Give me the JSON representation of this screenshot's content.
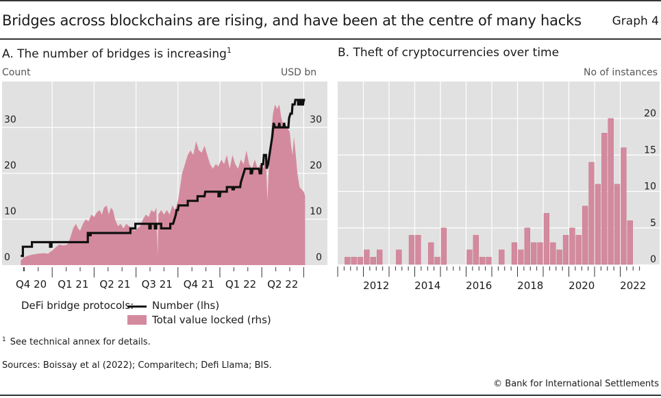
{
  "header": {
    "title": "Bridges across blockchains are rising, and have been at the centre of many hacks",
    "graph_label": "Graph 4"
  },
  "panels": {
    "a": {
      "title": "A. The number of bridges is increasing",
      "title_sup": "1",
      "left_unit": "Count",
      "right_unit": "USD bn"
    },
    "b": {
      "title": "B. Theft of cryptocurrencies over time",
      "right_unit": "No of instances"
    }
  },
  "legend": {
    "lead": "DeFi bridge protocols:",
    "number_label": "Number (lhs)",
    "tvl_label": "Total value locked (rhs)"
  },
  "footer": {
    "footnote_mark": "1",
    "footnote": "See technical annex for details.",
    "sources": "Sources: Boissay et al (2022); Comparitech; Defi Llama; BIS.",
    "copyright": "© Bank for International Settlements"
  },
  "colors": {
    "plot_bg": "#e1e1e1",
    "grid": "#ffffff",
    "tvl_fill": "#d48a9e",
    "number_line": "#111111",
    "bar_fill": "#d48a9e",
    "bar_stroke": "#c47489"
  },
  "chart_data": [
    {
      "type": "line+area",
      "title": "A. The number of bridges is increasing",
      "x_unit": "months since 1 Oct 2020",
      "xlim": [
        -0.6,
        22.6
      ],
      "x_ticks": [
        {
          "label": "Q4 20",
          "start": 0
        },
        {
          "label": "Q1 21",
          "start": 3
        },
        {
          "label": "Q2 21",
          "start": 6
        },
        {
          "label": "Q3 21",
          "start": 9
        },
        {
          "label": "Q4 21",
          "start": 12
        },
        {
          "label": "Q1 22",
          "start": 15
        },
        {
          "label": "Q2 22",
          "start": 18
        }
      ],
      "x_end": 21,
      "ylabel_left": "Count",
      "ylabel_right": "USD bn",
      "ylim_left": [
        0,
        40
      ],
      "ylim_right": [
        0,
        40
      ],
      "y_ticks_left": [
        0,
        10,
        20,
        30
      ],
      "y_ticks_right": [
        0,
        10,
        20,
        30
      ],
      "grid": true,
      "series": [
        {
          "name": "Number (lhs)",
          "kind": "step-line",
          "axis": "left",
          "points": [
            [
              0.75,
              2
            ],
            [
              0.9,
              2
            ],
            [
              0.9,
              4
            ],
            [
              1.55,
              4
            ],
            [
              1.55,
              5
            ],
            [
              2.85,
              5
            ],
            [
              2.85,
              4
            ],
            [
              2.95,
              4
            ],
            [
              2.95,
              5
            ],
            [
              5.55,
              5
            ],
            [
              5.55,
              7
            ],
            [
              5.65,
              7
            ],
            [
              5.65,
              6.5
            ],
            [
              5.75,
              6.5
            ],
            [
              5.75,
              7
            ],
            [
              8.6,
              7
            ],
            [
              8.6,
              8
            ],
            [
              8.95,
              8
            ],
            [
              8.95,
              9
            ],
            [
              9.95,
              9
            ],
            [
              9.95,
              8
            ],
            [
              10.05,
              8
            ],
            [
              10.05,
              9
            ],
            [
              10.35,
              9
            ],
            [
              10.35,
              8
            ],
            [
              10.45,
              8
            ],
            [
              10.45,
              9
            ],
            [
              10.8,
              9
            ],
            [
              10.8,
              8
            ],
            [
              11.45,
              8
            ],
            [
              11.45,
              9
            ],
            [
              11.65,
              9
            ],
            [
              11.75,
              10
            ],
            [
              11.85,
              11
            ],
            [
              11.9,
              12
            ],
            [
              12.0,
              12
            ],
            [
              12.05,
              13
            ],
            [
              12.7,
              13
            ],
            [
              12.7,
              14
            ],
            [
              13.4,
              14
            ],
            [
              13.4,
              15
            ],
            [
              13.9,
              15
            ],
            [
              13.95,
              16
            ],
            [
              14.9,
              16
            ],
            [
              14.9,
              15
            ],
            [
              15.0,
              15
            ],
            [
              15.05,
              16
            ],
            [
              15.5,
              16
            ],
            [
              15.5,
              17
            ],
            [
              15.9,
              17
            ],
            [
              15.9,
              16.5
            ],
            [
              16.0,
              16.5
            ],
            [
              16.05,
              17
            ],
            [
              16.45,
              17
            ],
            [
              16.5,
              18
            ],
            [
              16.6,
              19
            ],
            [
              16.7,
              20
            ],
            [
              16.8,
              21
            ],
            [
              17.2,
              21
            ],
            [
              17.2,
              20
            ],
            [
              17.3,
              20
            ],
            [
              17.35,
              21
            ],
            [
              17.8,
              21
            ],
            [
              17.85,
              20
            ],
            [
              17.95,
              20
            ],
            [
              18.0,
              22
            ],
            [
              18.1,
              22
            ],
            [
              18.15,
              24
            ],
            [
              18.3,
              24
            ],
            [
              18.35,
              21
            ],
            [
              18.45,
              22
            ],
            [
              18.5,
              23
            ],
            [
              18.6,
              25
            ],
            [
              18.75,
              28
            ],
            [
              18.85,
              31
            ],
            [
              18.95,
              30
            ],
            [
              19.2,
              30
            ],
            [
              19.25,
              31
            ],
            [
              19.3,
              30
            ],
            [
              19.55,
              30
            ],
            [
              19.6,
              31
            ],
            [
              19.65,
              30
            ],
            [
              19.9,
              30
            ],
            [
              19.95,
              32
            ],
            [
              20.05,
              33
            ],
            [
              20.15,
              33
            ],
            [
              20.2,
              35
            ],
            [
              20.35,
              35
            ],
            [
              20.4,
              36
            ],
            [
              20.6,
              36
            ],
            [
              20.6,
              35
            ],
            [
              20.7,
              35
            ],
            [
              20.75,
              36
            ],
            [
              20.85,
              36
            ],
            [
              20.85,
              35
            ],
            [
              20.95,
              35
            ],
            [
              21.0,
              36
            ],
            [
              21.1,
              36
            ]
          ]
        },
        {
          "name": "Total value locked (rhs)",
          "kind": "area",
          "axis": "right",
          "points": [
            [
              0.75,
              1
            ],
            [
              0.9,
              1.5
            ],
            [
              1.2,
              2
            ],
            [
              1.6,
              2.3
            ],
            [
              2.0,
              2.5
            ],
            [
              2.4,
              2.6
            ],
            [
              2.7,
              2.5
            ],
            [
              3.0,
              3.2
            ],
            [
              3.3,
              4
            ],
            [
              3.5,
              4.5
            ],
            [
              3.8,
              4.3
            ],
            [
              4.1,
              4.5
            ],
            [
              4.3,
              6
            ],
            [
              4.5,
              8
            ],
            [
              4.7,
              9
            ],
            [
              4.85,
              8
            ],
            [
              5.0,
              7.5
            ],
            [
              5.2,
              9
            ],
            [
              5.4,
              10
            ],
            [
              5.6,
              9.5
            ],
            [
              5.8,
              11
            ],
            [
              6.0,
              10.5
            ],
            [
              6.2,
              11.5
            ],
            [
              6.4,
              12
            ],
            [
              6.55,
              11
            ],
            [
              6.7,
              12.5
            ],
            [
              6.9,
              13
            ],
            [
              7.05,
              11
            ],
            [
              7.2,
              12.5
            ],
            [
              7.35,
              12
            ],
            [
              7.5,
              10
            ],
            [
              7.7,
              8.5
            ],
            [
              7.9,
              9
            ],
            [
              8.1,
              8
            ],
            [
              8.3,
              9
            ],
            [
              8.5,
              8.5
            ],
            [
              8.7,
              8
            ],
            [
              8.9,
              7.5
            ],
            [
              9.1,
              8
            ],
            [
              9.3,
              8.5
            ],
            [
              9.5,
              10
            ],
            [
              9.7,
              11
            ],
            [
              9.9,
              10.5
            ],
            [
              10.1,
              12
            ],
            [
              10.3,
              11.5
            ],
            [
              10.45,
              12.5
            ],
            [
              10.55,
              2
            ],
            [
              10.6,
              11
            ],
            [
              10.8,
              12
            ],
            [
              11.0,
              11
            ],
            [
              11.2,
              12
            ],
            [
              11.4,
              11
            ],
            [
              11.6,
              13
            ],
            [
              11.8,
              12
            ],
            [
              12.0,
              14
            ],
            [
              12.15,
              17
            ],
            [
              12.3,
              20
            ],
            [
              12.5,
              22
            ],
            [
              12.7,
              24
            ],
            [
              12.9,
              25
            ],
            [
              13.1,
              24
            ],
            [
              13.3,
              27
            ],
            [
              13.5,
              25
            ],
            [
              13.7,
              24.5
            ],
            [
              13.9,
              26
            ],
            [
              14.1,
              24
            ],
            [
              14.3,
              22
            ],
            [
              14.5,
              21
            ],
            [
              14.7,
              22
            ],
            [
              14.9,
              21.5
            ],
            [
              15.1,
              23
            ],
            [
              15.3,
              22
            ],
            [
              15.5,
              24
            ],
            [
              15.7,
              21
            ],
            [
              15.9,
              24
            ],
            [
              16.1,
              22
            ],
            [
              16.3,
              21
            ],
            [
              16.5,
              23
            ],
            [
              16.7,
              22
            ],
            [
              16.9,
              25
            ],
            [
              17.1,
              22
            ],
            [
              17.3,
              21
            ],
            [
              17.5,
              23
            ],
            [
              17.7,
              21
            ],
            [
              17.9,
              22
            ],
            [
              18.1,
              21
            ],
            [
              18.3,
              23
            ],
            [
              18.4,
              14
            ],
            [
              18.5,
              21
            ],
            [
              18.65,
              28
            ],
            [
              18.8,
              33
            ],
            [
              18.95,
              35
            ],
            [
              19.1,
              34
            ],
            [
              19.25,
              35
            ],
            [
              19.4,
              32
            ],
            [
              19.6,
              30
            ],
            [
              19.8,
              30
            ],
            [
              20.0,
              29
            ],
            [
              20.1,
              26
            ],
            [
              20.2,
              24
            ],
            [
              20.3,
              28
            ],
            [
              20.4,
              25
            ],
            [
              20.55,
              20
            ],
            [
              20.7,
              17
            ],
            [
              20.85,
              16.5
            ],
            [
              21.0,
              16
            ],
            [
              21.1,
              15
            ]
          ]
        }
      ]
    },
    {
      "type": "bar",
      "title": "B. Theft of cryptocurrencies over time",
      "frequency": "quarterly",
      "x_start": "2011 Q1",
      "xlim_years": [
        2011,
        2023
      ],
      "x_tick_labels": [
        "2012",
        "2014",
        "2016",
        "2018",
        "2020",
        "2022"
      ],
      "ylabel_right": "No of instances",
      "ylim": [
        0,
        22
      ],
      "y_ticks_right": [
        0,
        5,
        10,
        15,
        20
      ],
      "grid": true,
      "categories": [
        "2011 Q1",
        "2011 Q2",
        "2011 Q3",
        "2011 Q4",
        "2012 Q1",
        "2012 Q2",
        "2012 Q3",
        "2012 Q4",
        "2013 Q1",
        "2013 Q2",
        "2013 Q3",
        "2013 Q4",
        "2014 Q1",
        "2014 Q2",
        "2014 Q3",
        "2014 Q4",
        "2015 Q1",
        "2015 Q2",
        "2015 Q3",
        "2015 Q4",
        "2016 Q1",
        "2016 Q2",
        "2016 Q3",
        "2016 Q4",
        "2017 Q1",
        "2017 Q2",
        "2017 Q3",
        "2017 Q4",
        "2018 Q1",
        "2018 Q2",
        "2018 Q3",
        "2018 Q4",
        "2019 Q1",
        "2019 Q2",
        "2019 Q3",
        "2019 Q4",
        "2020 Q1",
        "2020 Q2",
        "2020 Q3",
        "2020 Q4",
        "2021 Q1",
        "2021 Q2",
        "2021 Q3",
        "2021 Q4",
        "2022 Q1",
        "2022 Q2"
      ],
      "values": [
        0,
        1,
        1,
        1,
        2,
        1,
        2,
        0,
        0,
        2,
        0,
        4,
        4,
        0,
        3,
        1,
        5,
        0,
        0,
        0,
        2,
        4,
        1,
        1,
        0,
        2,
        0,
        3,
        2,
        5,
        3,
        3,
        7,
        3,
        2,
        4,
        5,
        4,
        8,
        14,
        11,
        18,
        20,
        11,
        16,
        6
      ]
    }
  ]
}
